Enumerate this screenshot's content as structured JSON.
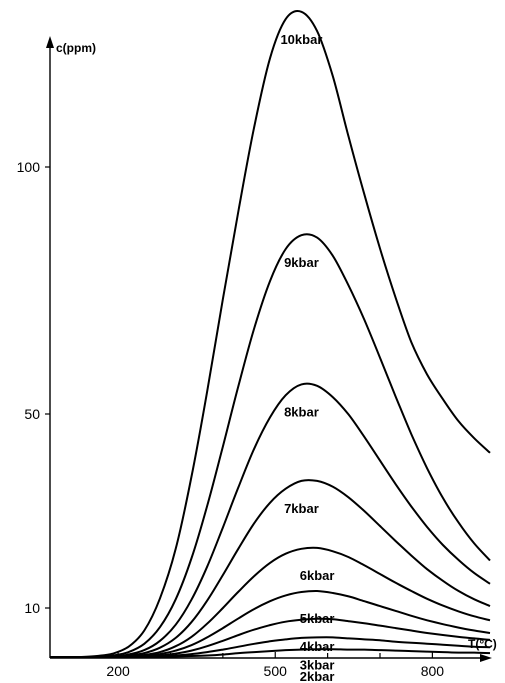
{
  "chart_data": {
    "type": "line",
    "ylabel": "c(ppm)",
    "xlabel": "T(°C)",
    "x_ticks": [
      200,
      500,
      800
    ],
    "y_ticks": [
      10,
      50,
      100
    ],
    "x_minor_ticks": [
      300,
      400,
      600,
      700
    ],
    "xlim": [
      70,
      910
    ],
    "ylim": [
      0,
      130
    ],
    "grid": false,
    "legend": "none",
    "x": [
      70,
      100,
      130,
      160,
      190,
      220,
      250,
      280,
      310,
      340,
      370,
      400,
      430,
      460,
      490,
      520,
      550,
      580,
      610,
      640,
      670,
      700,
      730,
      760,
      790,
      820,
      850,
      880,
      910
    ],
    "series": [
      {
        "name": "10kbar",
        "values": [
          0,
          0,
          0,
          0.2,
          0.7,
          2.1,
          5.4,
          12.0,
          22.2,
          37.0,
          54.5,
          73.3,
          91.3,
          106.7,
          118.0,
          124.5,
          125.7,
          122.5,
          115.0,
          105.0,
          94.5,
          83.5,
          73.5,
          64.5,
          58.0,
          53.0,
          48.5,
          45.0,
          42.0
        ]
      },
      {
        "name": "9kbar",
        "values": [
          0,
          0,
          0,
          0,
          0.3,
          1.0,
          2.7,
          6.1,
          11.8,
          20.2,
          31.0,
          43.3,
          55.8,
          67.4,
          76.9,
          83.4,
          86.2,
          85.7,
          82.0,
          76.0,
          69.1,
          61.4,
          53.5,
          45.8,
          38.8,
          32.7,
          27.6,
          23.3,
          19.8
        ]
      },
      {
        "name": "8kbar",
        "values": [
          0,
          0,
          0,
          0,
          0.1,
          0.5,
          1.4,
          3.3,
          6.6,
          11.7,
          18.5,
          26.6,
          35.0,
          42.9,
          49.3,
          53.8,
          56.0,
          55.7,
          53.4,
          49.9,
          45.3,
          40.4,
          35.5,
          30.9,
          26.7,
          23.0,
          19.9,
          17.2,
          15.0
        ]
      },
      {
        "name": "7kbar",
        "values": [
          0,
          0,
          0,
          0,
          0,
          0.3,
          0.8,
          1.9,
          3.9,
          7.1,
          11.5,
          16.8,
          22.3,
          27.5,
          31.7,
          34.6,
          36.2,
          36.2,
          35.0,
          32.8,
          30.0,
          26.9,
          23.8,
          20.8,
          18.0,
          15.6,
          13.5,
          11.8,
          10.4
        ]
      },
      {
        "name": "6kbar",
        "values": [
          0,
          0,
          0,
          0,
          0,
          0.1,
          0.4,
          1.0,
          2.2,
          4.1,
          6.8,
          10.0,
          13.4,
          16.6,
          19.3,
          21.2,
          22.2,
          22.4,
          21.7,
          20.5,
          18.8,
          17.0,
          15.2,
          13.5,
          11.9,
          10.5,
          9.3,
          8.3,
          7.5
        ]
      },
      {
        "name": "5kbar",
        "values": [
          0,
          0,
          0,
          0,
          0,
          0,
          0.2,
          0.6,
          1.3,
          2.4,
          4.0,
          5.9,
          7.9,
          9.8,
          11.4,
          12.6,
          13.3,
          13.5,
          13.1,
          12.4,
          11.4,
          10.4,
          9.4,
          8.4,
          7.5,
          6.7,
          6.0,
          5.4,
          4.9
        ]
      },
      {
        "name": "4kbar",
        "values": [
          0,
          0,
          0,
          0,
          0,
          0,
          0.1,
          0.3,
          0.7,
          1.3,
          2.2,
          3.3,
          4.5,
          5.6,
          6.5,
          7.2,
          7.6,
          7.8,
          7.7,
          7.3,
          6.9,
          6.4,
          5.9,
          5.4,
          4.9,
          4.5,
          4.1,
          3.8,
          3.5
        ]
      },
      {
        "name": "3kbar",
        "values": [
          0,
          0,
          0,
          0,
          0,
          0,
          0,
          0.1,
          0.3,
          0.6,
          1.0,
          1.5,
          2.1,
          2.7,
          3.2,
          3.6,
          3.9,
          4.0,
          4.0,
          3.8,
          3.6,
          3.4,
          3.1,
          2.9,
          2.7,
          2.5,
          2.3,
          2.1,
          2.0
        ]
      },
      {
        "name": "2kbar",
        "values": [
          0,
          0,
          0,
          0,
          0,
          0,
          0,
          0,
          0.1,
          0.2,
          0.3,
          0.5,
          0.8,
          1.0,
          1.2,
          1.4,
          1.5,
          1.6,
          1.6,
          1.5,
          1.5,
          1.4,
          1.3,
          1.2,
          1.1,
          1.0,
          0.9,
          0.9,
          0.8
        ]
      }
    ]
  }
}
